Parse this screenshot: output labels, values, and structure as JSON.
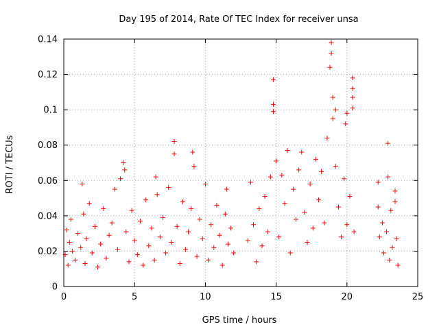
{
  "chart_data": {
    "type": "scatter",
    "title": "Day 195 of 2014, Rate Of TEC Index for receiver unsa",
    "xlabel": "GPS time / hours",
    "ylabel": "ROTI / TECUs",
    "xlim": [
      0,
      25
    ],
    "ylim": [
      0,
      0.14
    ],
    "xticks": [
      0,
      5,
      10,
      15,
      20,
      25
    ],
    "xtick_labels": [
      "0",
      "5",
      "10",
      "15",
      "20",
      "25"
    ],
    "yticks": [
      0,
      0.02,
      0.04,
      0.06,
      0.08,
      0.1,
      0.12,
      0.14
    ],
    "ytick_labels": [
      "0",
      "0.02",
      "0.04",
      "0.06",
      "0.08",
      "0.1",
      "0.12",
      "0.14"
    ],
    "grid": true,
    "marker": "+",
    "series": [
      {
        "name": "ROTI",
        "color": "#ff0000",
        "points": [
          [
            0.1,
            0.018
          ],
          [
            0.2,
            0.032
          ],
          [
            0.3,
            0.012
          ],
          [
            0.4,
            0.025
          ],
          [
            0.5,
            0.038
          ],
          [
            0.6,
            0.02
          ],
          [
            0.8,
            0.015
          ],
          [
            1.0,
            0.03
          ],
          [
            1.2,
            0.022
          ],
          [
            1.3,
            0.058
          ],
          [
            1.4,
            0.041
          ],
          [
            1.5,
            0.013
          ],
          [
            1.6,
            0.027
          ],
          [
            1.8,
            0.047
          ],
          [
            2.0,
            0.019
          ],
          [
            2.2,
            0.034
          ],
          [
            2.4,
            0.011
          ],
          [
            2.6,
            0.024
          ],
          [
            2.8,
            0.044
          ],
          [
            3.0,
            0.016
          ],
          [
            3.2,
            0.029
          ],
          [
            3.4,
            0.036
          ],
          [
            3.6,
            0.055
          ],
          [
            3.8,
            0.021
          ],
          [
            4.0,
            0.061
          ],
          [
            4.2,
            0.07
          ],
          [
            4.3,
            0.066
          ],
          [
            4.4,
            0.031
          ],
          [
            4.6,
            0.014
          ],
          [
            4.8,
            0.043
          ],
          [
            5.0,
            0.026
          ],
          [
            5.2,
            0.018
          ],
          [
            5.4,
            0.037
          ],
          [
            5.6,
            0.012
          ],
          [
            5.8,
            0.049
          ],
          [
            6.0,
            0.023
          ],
          [
            6.2,
            0.033
          ],
          [
            6.4,
            0.015
          ],
          [
            6.5,
            0.062
          ],
          [
            6.6,
            0.052
          ],
          [
            6.8,
            0.028
          ],
          [
            7.0,
            0.039
          ],
          [
            7.2,
            0.019
          ],
          [
            7.4,
            0.056
          ],
          [
            7.6,
            0.025
          ],
          [
            7.8,
            0.082
          ],
          [
            7.8,
            0.075
          ],
          [
            8.0,
            0.034
          ],
          [
            8.2,
            0.013
          ],
          [
            8.4,
            0.048
          ],
          [
            8.6,
            0.021
          ],
          [
            8.8,
            0.031
          ],
          [
            9.0,
            0.044
          ],
          [
            9.1,
            0.076
          ],
          [
            9.2,
            0.068
          ],
          [
            9.4,
            0.017
          ],
          [
            9.6,
            0.038
          ],
          [
            9.8,
            0.027
          ],
          [
            10.0,
            0.058
          ],
          [
            10.2,
            0.015
          ],
          [
            10.4,
            0.035
          ],
          [
            10.6,
            0.022
          ],
          [
            10.8,
            0.046
          ],
          [
            11.0,
            0.029
          ],
          [
            11.2,
            0.012
          ],
          [
            11.4,
            0.041
          ],
          [
            11.5,
            0.055
          ],
          [
            11.6,
            0.024
          ],
          [
            11.8,
            0.033
          ],
          [
            12.0,
            0.019
          ],
          [
            13.0,
            0.026
          ],
          [
            13.2,
            0.059
          ],
          [
            13.4,
            0.035
          ],
          [
            13.6,
            0.014
          ],
          [
            13.8,
            0.044
          ],
          [
            14.0,
            0.023
          ],
          [
            14.2,
            0.051
          ],
          [
            14.4,
            0.031
          ],
          [
            14.6,
            0.062
          ],
          [
            14.8,
            0.117
          ],
          [
            14.8,
            0.103
          ],
          [
            14.8,
            0.099
          ],
          [
            15.0,
            0.071
          ],
          [
            15.2,
            0.028
          ],
          [
            15.4,
            0.063
          ],
          [
            15.6,
            0.047
          ],
          [
            15.8,
            0.077
          ],
          [
            16.0,
            0.019
          ],
          [
            16.2,
            0.055
          ],
          [
            16.4,
            0.038
          ],
          [
            16.6,
            0.066
          ],
          [
            16.8,
            0.076
          ],
          [
            17.0,
            0.042
          ],
          [
            17.2,
            0.025
          ],
          [
            17.4,
            0.058
          ],
          [
            17.6,
            0.033
          ],
          [
            17.8,
            0.072
          ],
          [
            18.0,
            0.049
          ],
          [
            18.2,
            0.065
          ],
          [
            18.4,
            0.036
          ],
          [
            18.6,
            0.084
          ],
          [
            18.8,
            0.124
          ],
          [
            18.9,
            0.138
          ],
          [
            18.9,
            0.132
          ],
          [
            19.0,
            0.107
          ],
          [
            19.0,
            0.095
          ],
          [
            19.2,
            0.1
          ],
          [
            19.2,
            0.068
          ],
          [
            19.4,
            0.045
          ],
          [
            19.6,
            0.028
          ],
          [
            19.8,
            0.061
          ],
          [
            19.9,
            0.092
          ],
          [
            20.0,
            0.098
          ],
          [
            20.0,
            0.035
          ],
          [
            20.2,
            0.051
          ],
          [
            20.4,
            0.118
          ],
          [
            20.4,
            0.112
          ],
          [
            20.4,
            0.107
          ],
          [
            20.4,
            0.101
          ],
          [
            20.5,
            0.031
          ],
          [
            22.2,
            0.059
          ],
          [
            22.2,
            0.045
          ],
          [
            22.3,
            0.028
          ],
          [
            22.5,
            0.036
          ],
          [
            22.6,
            0.019
          ],
          [
            22.8,
            0.031
          ],
          [
            22.9,
            0.081
          ],
          [
            22.9,
            0.062
          ],
          [
            23.0,
            0.015
          ],
          [
            23.1,
            0.043
          ],
          [
            23.2,
            0.022
          ],
          [
            23.4,
            0.054
          ],
          [
            23.4,
            0.048
          ],
          [
            23.5,
            0.027
          ],
          [
            23.6,
            0.012
          ]
        ]
      }
    ]
  }
}
